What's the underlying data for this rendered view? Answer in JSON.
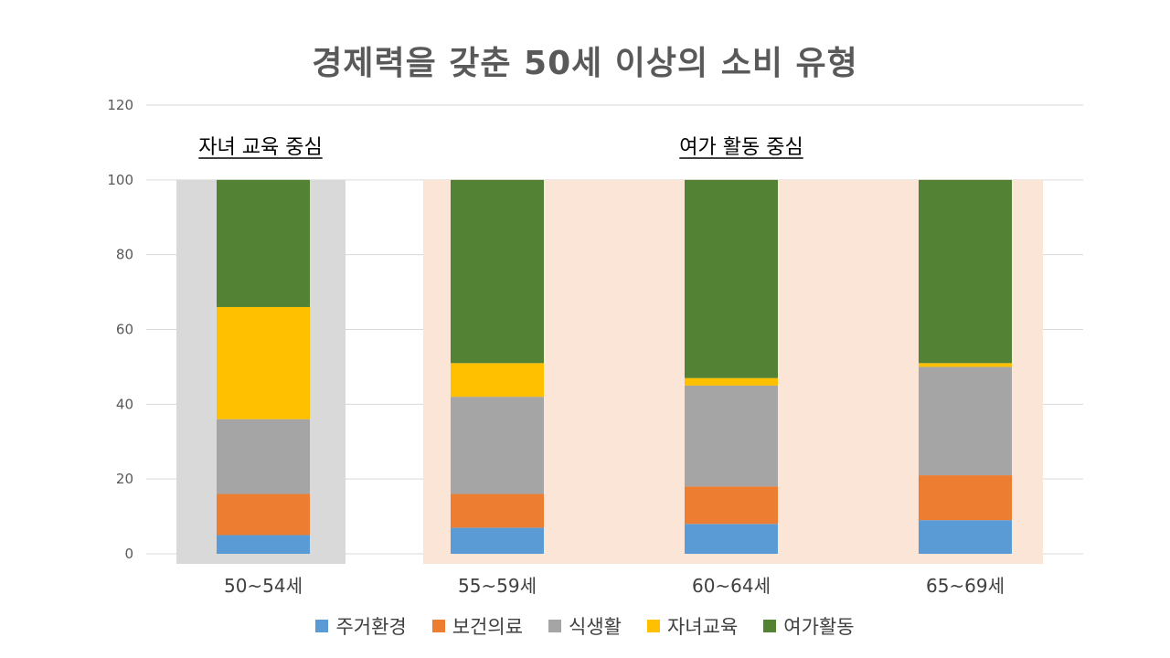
{
  "chart_data": {
    "type": "bar",
    "stacked": true,
    "title": "경제력을 갖춘 50세 이상의 소비 유형",
    "xlabel": "",
    "ylabel": "",
    "ylim": [
      0,
      120
    ],
    "yticks": [
      0,
      20,
      40,
      60,
      80,
      100,
      120
    ],
    "grid": true,
    "legend_position": "bottom",
    "categories": [
      "50~54세",
      "55~59세",
      "60~64세",
      "65~69세"
    ],
    "series": [
      {
        "name": "주거환경",
        "color": "#5B9BD5",
        "values": [
          5,
          7,
          8,
          9
        ]
      },
      {
        "name": "보건의료",
        "color": "#ED7D31",
        "values": [
          11,
          9,
          10,
          12
        ]
      },
      {
        "name": "식생활",
        "color": "#A5A5A5",
        "values": [
          20,
          26,
          27,
          29
        ]
      },
      {
        "name": "자녀교육",
        "color": "#FFC000",
        "values": [
          30,
          9,
          2,
          1
        ]
      },
      {
        "name": "여가활동",
        "color": "#548235",
        "values": [
          34,
          49,
          53,
          49
        ]
      }
    ],
    "annotations": [
      {
        "label": "자녀 교육 중심",
        "categories": [
          0
        ],
        "background": "#D9D9D9"
      },
      {
        "label": "여가 활동 중심",
        "categories": [
          1,
          2,
          3
        ],
        "background": "#FBE5D6"
      }
    ]
  }
}
